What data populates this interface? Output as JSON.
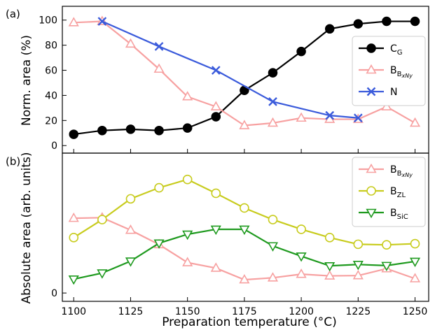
{
  "chart_data": [
    {
      "type": "line",
      "panel_label": "(a)",
      "ylabel": "Norm. area (%)",
      "x": [
        1100,
        1112.5,
        1125,
        1137.5,
        1150,
        1162.5,
        1175,
        1187.5,
        1200,
        1212.5,
        1225,
        1237.5,
        1250
      ],
      "xlim": [
        1095,
        1256
      ],
      "ylim": [
        -6,
        111
      ],
      "y_ticks": [
        0,
        20,
        40,
        60,
        80,
        100
      ],
      "grid": false,
      "legend_position": "right",
      "series": [
        {
          "name": "CG",
          "name_main": "C",
          "name_sub": "G",
          "name_subsub": "",
          "color": "#000000",
          "marker": "circle-filled",
          "x": [
            1100,
            1112.5,
            1125,
            1137.5,
            1150,
            1162.5,
            1175,
            1187.5,
            1200,
            1212.5,
            1225,
            1237.5,
            1250
          ],
          "values": [
            9,
            12,
            13,
            12,
            14,
            23,
            44,
            58,
            75,
            93,
            97,
            99,
            99
          ]
        },
        {
          "name": "BBxNy",
          "name_main": "B",
          "name_sub": "B",
          "name_subsub": "xNy",
          "color": "#f7a1a1",
          "marker": "triangle-up-open",
          "x": [
            1100,
            1112.5,
            1125,
            1137.5,
            1150,
            1162.5,
            1175,
            1187.5,
            1200,
            1212.5,
            1225,
            1237.5,
            1250
          ],
          "values": [
            98,
            99,
            81,
            61,
            39,
            31,
            16,
            18,
            22,
            21,
            21,
            31,
            18
          ]
        },
        {
          "name": "N",
          "name_main": "N",
          "name_sub": "",
          "name_subsub": "",
          "color": "#3b5bdb",
          "marker": "x",
          "x": [
            1112.5,
            1137.5,
            1162.5,
            1187.5,
            1212.5,
            1225
          ],
          "values": [
            99,
            79,
            60,
            35,
            24,
            22
          ]
        }
      ]
    },
    {
      "type": "line",
      "panel_label": "(b)",
      "xlabel": "Preparation temperature (°C)",
      "ylabel": "Absolute area (arb. units)",
      "x": [
        1100,
        1112.5,
        1125,
        1137.5,
        1150,
        1162.5,
        1175,
        1187.5,
        1200,
        1212.5,
        1225,
        1237.5,
        1250
      ],
      "x_ticks": [
        1100,
        1125,
        1150,
        1175,
        1200,
        1225,
        1250
      ],
      "xlim": [
        1095,
        1256
      ],
      "ylim": [
        -0.3,
        5.05
      ],
      "y_ticks": [
        0
      ],
      "grid": false,
      "legend_position": "top-right",
      "series": [
        {
          "name": "BBxNy",
          "name_main": "B",
          "name_sub": "B",
          "name_subsub": "xNy",
          "color": "#f7a1a1",
          "marker": "triangle-up-open",
          "values": [
            2.7,
            2.72,
            2.27,
            1.75,
            1.1,
            0.9,
            0.48,
            0.55,
            0.68,
            0.62,
            0.63,
            0.88,
            0.52
          ]
        },
        {
          "name": "BZL",
          "name_main": "B",
          "name_sub": "ZL",
          "name_subsub": "",
          "color": "#c8cc1e",
          "marker": "circle-open",
          "values": [
            2.0,
            2.65,
            3.4,
            3.8,
            4.1,
            3.6,
            3.07,
            2.65,
            2.3,
            2.0,
            1.76,
            1.74,
            1.78
          ]
        },
        {
          "name": "BSiC",
          "name_main": "B",
          "name_sub": "SiC",
          "name_subsub": "",
          "color": "#1f9a1f",
          "marker": "triangle-down-open",
          "values": [
            0.5,
            0.72,
            1.15,
            1.8,
            2.12,
            2.3,
            2.3,
            1.7,
            1.33,
            0.98,
            1.03,
            0.99,
            1.14
          ]
        }
      ]
    }
  ]
}
